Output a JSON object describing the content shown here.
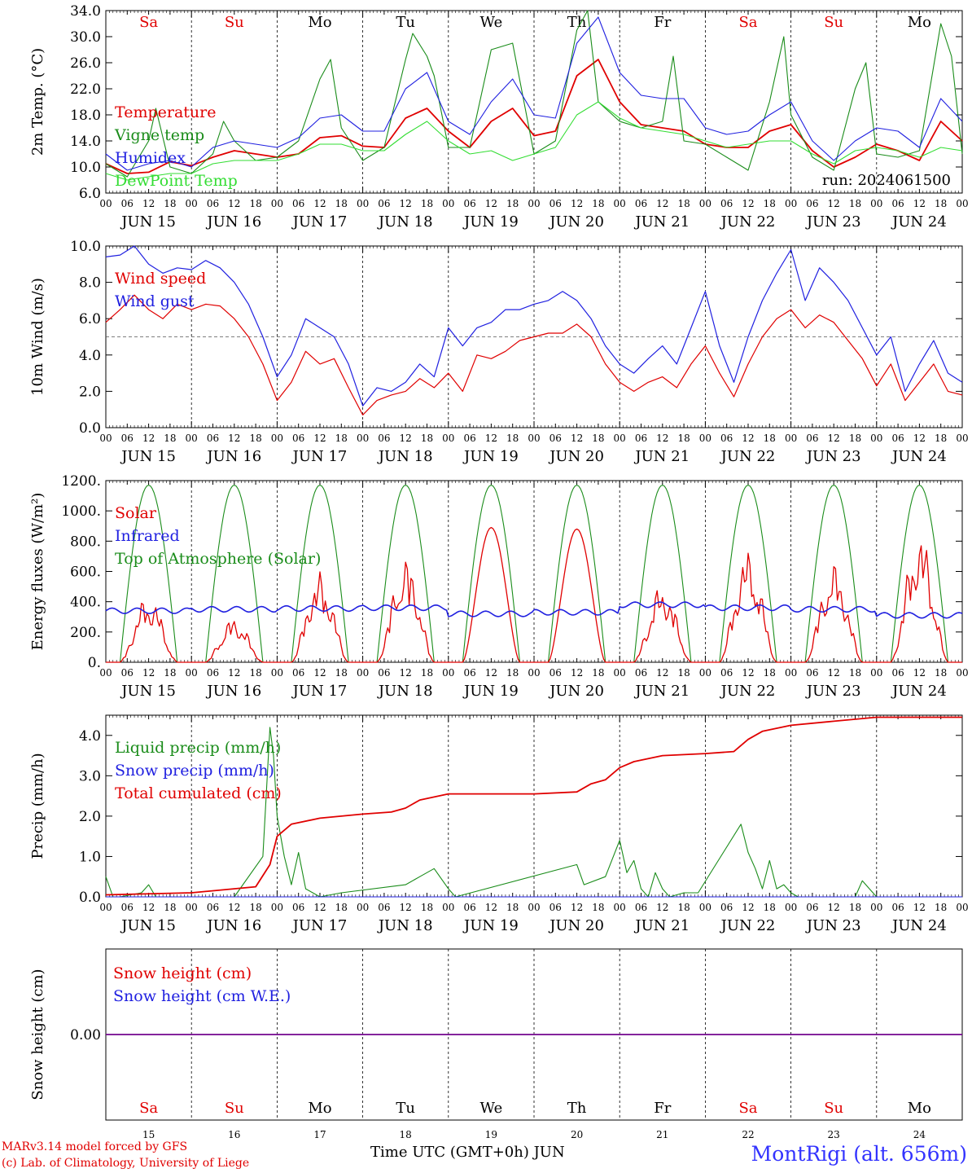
{
  "days": [
    {
      "abbr": "Sa",
      "date": "JUN 15",
      "num": "15",
      "weekend": true
    },
    {
      "abbr": "Su",
      "date": "JUN 16",
      "num": "16",
      "weekend": true
    },
    {
      "abbr": "Mo",
      "date": "JUN 17",
      "num": "17",
      "weekend": false
    },
    {
      "abbr": "Tu",
      "date": "JUN 18",
      "num": "18",
      "weekend": false
    },
    {
      "abbr": "We",
      "date": "JUN 19",
      "num": "19",
      "weekend": false
    },
    {
      "abbr": "Th",
      "date": "JUN 20",
      "num": "20",
      "weekend": false
    },
    {
      "abbr": "Fr",
      "date": "JUN 21",
      "num": "21",
      "weekend": false
    },
    {
      "abbr": "Sa",
      "date": "JUN 22",
      "num": "22",
      "weekend": true
    },
    {
      "abbr": "Su",
      "date": "JUN 23",
      "num": "23",
      "weekend": true
    },
    {
      "abbr": "Mo",
      "date": "JUN 24",
      "num": "24",
      "weekend": false
    }
  ],
  "hour_ticks": [
    "00",
    "06",
    "12",
    "18"
  ],
  "footer": {
    "line1": "MARv3.14 model forced by GFS",
    "line2": "(c) Lab. of Climatology, University of Liege",
    "x_title": "Time UTC (GMT+0h) JUN",
    "station": "MontRigi (alt. 656m)"
  },
  "colors": {
    "red": "#e00000",
    "green": "#1a8c1a",
    "blue": "#2020e0",
    "lightgreen": "#33dd33",
    "purple": "#800080",
    "weekend": "#e00000"
  },
  "chart_data": [
    {
      "id": "temp",
      "type": "line",
      "ylabel": "2m Temp. (°C)",
      "ylim": [
        6,
        34
      ],
      "yticks": [
        "6.0",
        "10.0",
        "14.0",
        "18.0",
        "22.0",
        "26.0",
        "30.0",
        "34.0"
      ],
      "annotation": "run: 2024061500",
      "x_unit": "hours since JUN 15 00 UTC",
      "series": [
        {
          "name": "Temperature",
          "color": "#e00000",
          "x": [
            0,
            6,
            12,
            18,
            24,
            30,
            36,
            42,
            48,
            54,
            60,
            66,
            72,
            78,
            84,
            90,
            96,
            102,
            108,
            114,
            120,
            126,
            132,
            138,
            144,
            150,
            156,
            162,
            168,
            174,
            180,
            186,
            192,
            198,
            204,
            210,
            216,
            222,
            228,
            234,
            240
          ],
          "y": [
            10.5,
            9.0,
            9.2,
            10.8,
            10.2,
            11.5,
            12.5,
            12.0,
            11.5,
            12.0,
            14.5,
            14.8,
            13.2,
            13.0,
            17.5,
            19.0,
            15.5,
            13.0,
            17.0,
            19.0,
            14.8,
            15.5,
            24.0,
            26.5,
            20.0,
            16.5,
            16.0,
            15.5,
            13.5,
            13.0,
            13.0,
            15.5,
            16.5,
            12.5,
            10.0,
            11.5,
            13.5,
            12.5,
            11.0,
            17.0,
            14.0
          ]
        },
        {
          "name": "Vigne temp",
          "color": "#1a8c1a",
          "x": [
            0,
            6,
            12,
            14,
            18,
            24,
            30,
            33,
            36,
            42,
            48,
            54,
            60,
            63,
            66,
            72,
            78,
            84,
            86,
            90,
            92,
            96,
            102,
            108,
            114,
            120,
            126,
            132,
            135,
            138,
            144,
            150,
            156,
            159,
            162,
            168,
            174,
            180,
            186,
            190,
            192,
            198,
            204,
            210,
            213,
            216,
            222,
            228,
            234,
            237,
            240
          ],
          "y": [
            10.5,
            8.5,
            14.0,
            19.0,
            10.0,
            9.0,
            12.0,
            17.0,
            14.0,
            11.0,
            11.5,
            14.0,
            23.5,
            26.5,
            16.0,
            11.0,
            13.0,
            26.5,
            30.5,
            27.0,
            24.0,
            13.0,
            13.0,
            28.0,
            29.0,
            12.0,
            14.0,
            31.0,
            34.0,
            20.0,
            17.0,
            16.0,
            17.0,
            27.0,
            14.0,
            13.5,
            11.5,
            9.5,
            20.0,
            30.0,
            18.0,
            11.5,
            9.5,
            22.0,
            26.0,
            12.0,
            11.5,
            12.5,
            32.0,
            27.0,
            12.0
          ]
        },
        {
          "name": "Humidex",
          "color": "#2020e0",
          "x": [
            0,
            6,
            12,
            18,
            24,
            30,
            36,
            42,
            48,
            54,
            60,
            66,
            72,
            78,
            84,
            90,
            96,
            102,
            108,
            114,
            120,
            126,
            132,
            138,
            144,
            150,
            156,
            162,
            168,
            174,
            180,
            186,
            192,
            198,
            204,
            210,
            216,
            222,
            228,
            234,
            240
          ],
          "y": [
            12.0,
            9.5,
            10.5,
            11.0,
            10.0,
            13.0,
            14.0,
            13.5,
            13.0,
            14.5,
            17.5,
            18.0,
            15.5,
            15.5,
            22.0,
            24.5,
            17.0,
            15.0,
            20.0,
            23.5,
            18.0,
            17.5,
            29.0,
            33.0,
            24.5,
            21.0,
            20.5,
            20.5,
            16.0,
            15.0,
            15.5,
            18.0,
            20.0,
            14.0,
            11.0,
            14.0,
            16.0,
            15.5,
            13.0,
            20.5,
            17.0
          ]
        },
        {
          "name": "DewPoint Temp",
          "color": "#33dd33",
          "x": [
            0,
            6,
            12,
            18,
            24,
            30,
            36,
            42,
            48,
            54,
            60,
            66,
            72,
            78,
            84,
            90,
            96,
            102,
            108,
            114,
            120,
            126,
            132,
            138,
            144,
            150,
            156,
            162,
            168,
            174,
            180,
            186,
            192,
            198,
            204,
            210,
            216,
            222,
            228,
            234,
            240
          ],
          "y": [
            9.0,
            8.0,
            8.5,
            9.0,
            9.0,
            10.5,
            11.0,
            11.0,
            11.0,
            12.0,
            13.5,
            13.5,
            12.5,
            12.5,
            15.0,
            17.0,
            14.0,
            12.0,
            12.5,
            11.0,
            12.0,
            13.0,
            18.0,
            20.0,
            17.5,
            16.0,
            15.5,
            15.0,
            14.0,
            13.0,
            13.5,
            14.0,
            14.0,
            12.0,
            10.5,
            12.5,
            13.0,
            12.5,
            11.5,
            13.0,
            12.5
          ]
        }
      ]
    },
    {
      "id": "wind",
      "type": "line",
      "ylabel": "10m Wind (m/s)",
      "ylim": [
        0,
        10
      ],
      "yticks": [
        "0.0",
        "2.0",
        "4.0",
        "6.0",
        "8.0",
        "10.0"
      ],
      "ref_line": 5,
      "x_unit": "hours since JUN 15 00 UTC",
      "series": [
        {
          "name": "Wind speed",
          "color": "#e00000",
          "x": [
            0,
            4,
            8,
            12,
            16,
            20,
            24,
            28,
            32,
            36,
            40,
            44,
            48,
            52,
            56,
            60,
            64,
            68,
            72,
            76,
            80,
            84,
            88,
            92,
            96,
            100,
            104,
            108,
            112,
            116,
            120,
            124,
            128,
            132,
            136,
            140,
            144,
            148,
            152,
            156,
            160,
            164,
            168,
            172,
            176,
            180,
            184,
            188,
            192,
            196,
            200,
            204,
            208,
            212,
            216,
            220,
            224,
            228,
            232,
            236,
            240
          ],
          "y": [
            5.8,
            6.5,
            7.3,
            6.5,
            6.0,
            6.8,
            6.5,
            6.8,
            6.7,
            6.0,
            5.0,
            3.5,
            1.5,
            2.5,
            4.2,
            3.5,
            3.8,
            2.2,
            0.7,
            1.5,
            1.8,
            2.0,
            2.7,
            2.2,
            3.0,
            2.0,
            4.0,
            3.8,
            4.2,
            4.8,
            5.0,
            5.2,
            5.2,
            5.7,
            5.0,
            3.5,
            2.5,
            2.0,
            2.5,
            2.8,
            2.2,
            3.5,
            4.5,
            3.0,
            1.7,
            3.5,
            5.0,
            6.0,
            6.5,
            5.5,
            6.2,
            5.8,
            4.8,
            3.8,
            2.3,
            3.5,
            1.5,
            2.5,
            3.5,
            2.0,
            1.8
          ]
        },
        {
          "name": "Wind gust",
          "color": "#2020e0",
          "x": [
            0,
            4,
            8,
            12,
            16,
            20,
            24,
            28,
            32,
            36,
            40,
            44,
            48,
            52,
            56,
            60,
            64,
            68,
            72,
            76,
            80,
            84,
            88,
            92,
            96,
            100,
            104,
            108,
            112,
            116,
            120,
            124,
            128,
            132,
            136,
            140,
            144,
            148,
            152,
            156,
            160,
            164,
            168,
            172,
            176,
            180,
            184,
            188,
            192,
            196,
            200,
            204,
            208,
            212,
            216,
            220,
            224,
            228,
            232,
            236,
            240
          ],
          "y": [
            9.4,
            9.5,
            10.0,
            9.0,
            8.5,
            8.8,
            8.7,
            9.2,
            8.8,
            8.0,
            6.8,
            5.0,
            2.8,
            4.0,
            6.0,
            5.5,
            5.0,
            3.5,
            1.2,
            2.2,
            2.0,
            2.5,
            3.5,
            2.8,
            5.5,
            4.5,
            5.5,
            5.8,
            6.5,
            6.5,
            6.8,
            7.0,
            7.5,
            7.0,
            6.0,
            4.5,
            3.5,
            3.0,
            3.8,
            4.5,
            3.5,
            5.5,
            7.5,
            4.5,
            2.5,
            5.0,
            7.0,
            8.5,
            9.8,
            7.0,
            8.8,
            8.0,
            7.0,
            5.5,
            4.0,
            5.0,
            2.0,
            3.5,
            4.8,
            3.0,
            2.5
          ]
        }
      ]
    },
    {
      "id": "energy",
      "type": "line",
      "ylabel": "Energy fluxes (W/m²)",
      "ylim": [
        0,
        1200
      ],
      "yticks": [
        "0.",
        "200.",
        "400.",
        "600.",
        "800.",
        "1000.",
        "1200."
      ],
      "x_unit": "hours since JUN 15 00 UTC",
      "toa_peak": 1170,
      "toa_sunrise": 4,
      "toa_sunset": 20,
      "solar_peaks": [
        450,
        300,
        600,
        700,
        890,
        880,
        520,
        750,
        660,
        870
      ],
      "ir_baseline": [
        340,
        350,
        355,
        360,
        320,
        330,
        380,
        360,
        350,
        310
      ],
      "series": [
        {
          "name": "Solar",
          "color": "#e00000"
        },
        {
          "name": "Infrared",
          "color": "#2020e0"
        },
        {
          "name": "Top of Atmosphere (Solar)",
          "color": "#1a8c1a"
        }
      ]
    },
    {
      "id": "precip",
      "type": "line",
      "ylabel": "Precip (mm/h)",
      "ylim": [
        0,
        4.5
      ],
      "yticks": [
        "0.0",
        "1.0",
        "2.0",
        "3.0",
        "4.0"
      ],
      "x_unit": "hours since JUN 15 00 UTC",
      "series": [
        {
          "name": "Liquid precip (mm/h)",
          "color": "#1a8c1a",
          "x": [
            0,
            2,
            4,
            10,
            12,
            14,
            16,
            36,
            44,
            46,
            47,
            48,
            50,
            52,
            54,
            56,
            58,
            60,
            66,
            84,
            88,
            92,
            96,
            98,
            132,
            134,
            140,
            144,
            146,
            148,
            150,
            152,
            154,
            156,
            158,
            162,
            166,
            178,
            180,
            182,
            184,
            186,
            188,
            190,
            192,
            194,
            196,
            210,
            212,
            214,
            216,
            240
          ],
          "y": [
            0.5,
            0.0,
            0.0,
            0.1,
            0.3,
            0.0,
            0.0,
            0.0,
            1.0,
            4.2,
            3.5,
            2.0,
            1.0,
            0.3,
            1.1,
            0.2,
            0.1,
            0.0,
            0.1,
            0.3,
            0.5,
            0.7,
            0.2,
            0.0,
            0.8,
            0.3,
            0.5,
            1.4,
            0.6,
            0.9,
            0.2,
            0.0,
            0.6,
            0.2,
            0.0,
            0.1,
            0.1,
            1.8,
            1.1,
            0.7,
            0.2,
            0.9,
            0.2,
            0.3,
            0.1,
            0.0,
            0.0,
            0.0,
            0.4,
            0.2,
            0.0,
            0.0
          ]
        },
        {
          "name": "Snow precip (mm/h)",
          "color": "#2020e0",
          "x": [
            0,
            240
          ],
          "y": [
            0,
            0
          ]
        },
        {
          "name": "Total cumulated (cm)",
          "color": "#e00000",
          "x": [
            0,
            24,
            42,
            46,
            48,
            52,
            60,
            72,
            80,
            84,
            88,
            96,
            120,
            132,
            136,
            140,
            144,
            148,
            156,
            168,
            176,
            180,
            184,
            192,
            204,
            216,
            240
          ],
          "y": [
            0.05,
            0.1,
            0.25,
            0.8,
            1.5,
            1.8,
            1.95,
            2.05,
            2.1,
            2.2,
            2.4,
            2.55,
            2.55,
            2.6,
            2.8,
            2.9,
            3.2,
            3.35,
            3.5,
            3.55,
            3.6,
            3.9,
            4.1,
            4.25,
            4.35,
            4.45,
            4.45
          ]
        }
      ]
    },
    {
      "id": "snow",
      "type": "line",
      "ylabel": "Snow height (cm)",
      "yticks": [
        "0.00"
      ],
      "x_unit": "hours since JUN 15 00 UTC",
      "series": [
        {
          "name": "Snow height (cm)",
          "color": "#e00000",
          "x": [
            0,
            240
          ],
          "y": [
            0,
            0
          ]
        },
        {
          "name": "Snow height (cm W.E.)",
          "color": "#2020e0",
          "x": [
            0,
            240
          ],
          "y": [
            0,
            0
          ]
        }
      ]
    }
  ]
}
